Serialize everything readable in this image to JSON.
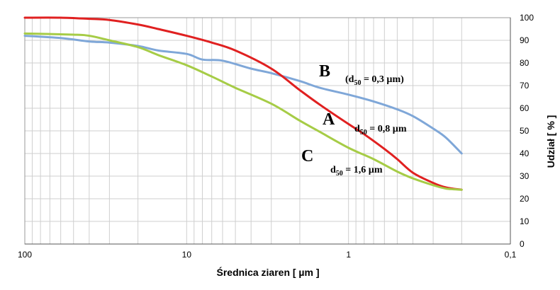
{
  "chart_data": {
    "type": "line",
    "xlabel": "Średnica ziaren [ µm ]",
    "ylabel": "Udział [ % ]",
    "xscale": "log",
    "x_reversed": true,
    "xlim": [
      100,
      0.1
    ],
    "ylim": [
      0,
      100
    ],
    "x_ticks": [
      "100",
      "10",
      "1",
      "0,1"
    ],
    "y_ticks": [
      "0",
      "10",
      "20",
      "30",
      "40",
      "50",
      "60",
      "70",
      "80",
      "90",
      "100"
    ],
    "y_axis_position": "right",
    "grid": true,
    "legend": "none",
    "series": [
      {
        "name": "B",
        "color": "#7fa7d8",
        "points": [
          [
            100,
            92
          ],
          [
            60,
            91
          ],
          [
            40,
            89.5
          ],
          [
            30,
            89
          ],
          [
            20,
            87.5
          ],
          [
            15,
            85.5
          ],
          [
            10,
            84
          ],
          [
            8,
            81.5
          ],
          [
            6,
            81
          ],
          [
            4,
            77.5
          ],
          [
            3,
            75.5
          ],
          [
            2,
            72
          ],
          [
            1.5,
            69
          ],
          [
            1,
            66
          ],
          [
            0.7,
            63
          ],
          [
            0.5,
            59.5
          ],
          [
            0.4,
            56.5
          ],
          [
            0.3,
            51
          ],
          [
            0.25,
            47
          ],
          [
            0.2,
            40
          ]
        ]
      },
      {
        "name": "A",
        "color": "#e02020",
        "points": [
          [
            100,
            100
          ],
          [
            60,
            100
          ],
          [
            40,
            99.5
          ],
          [
            30,
            99
          ],
          [
            20,
            97
          ],
          [
            15,
            95
          ],
          [
            10,
            92
          ],
          [
            7,
            89
          ],
          [
            5,
            85.5
          ],
          [
            3,
            77.5
          ],
          [
            2,
            68
          ],
          [
            1.5,
            61.5
          ],
          [
            1,
            53
          ],
          [
            0.8,
            48.5
          ],
          [
            0.6,
            42
          ],
          [
            0.5,
            37.5
          ],
          [
            0.4,
            31.5
          ],
          [
            0.3,
            27
          ],
          [
            0.25,
            25
          ],
          [
            0.2,
            24
          ]
        ]
      },
      {
        "name": "C",
        "color": "#a6cc46",
        "points": [
          [
            100,
            93
          ],
          [
            50,
            92.5
          ],
          [
            40,
            92
          ],
          [
            30,
            90
          ],
          [
            20,
            87
          ],
          [
            15,
            83.5
          ],
          [
            10,
            79
          ],
          [
            7,
            74
          ],
          [
            5,
            69
          ],
          [
            3,
            62
          ],
          [
            2,
            54.5
          ],
          [
            1.5,
            49.5
          ],
          [
            1,
            42.5
          ],
          [
            0.7,
            37.5
          ],
          [
            0.5,
            32
          ],
          [
            0.4,
            29
          ],
          [
            0.3,
            26
          ],
          [
            0.25,
            24.5
          ],
          [
            0.2,
            24
          ]
        ]
      }
    ],
    "annotations": [
      {
        "label": "B",
        "detail_prefix": "(d",
        "detail_sub": "50",
        "detail_suffix": " = 0,3 µm)"
      },
      {
        "label": "A",
        "detail_prefix": "d",
        "detail_sub": "50",
        "detail_suffix": " = 0,8 µm"
      },
      {
        "label": "C",
        "detail_prefix": "d",
        "detail_sub": "50",
        "detail_suffix": " = 1,6 µm"
      }
    ]
  }
}
